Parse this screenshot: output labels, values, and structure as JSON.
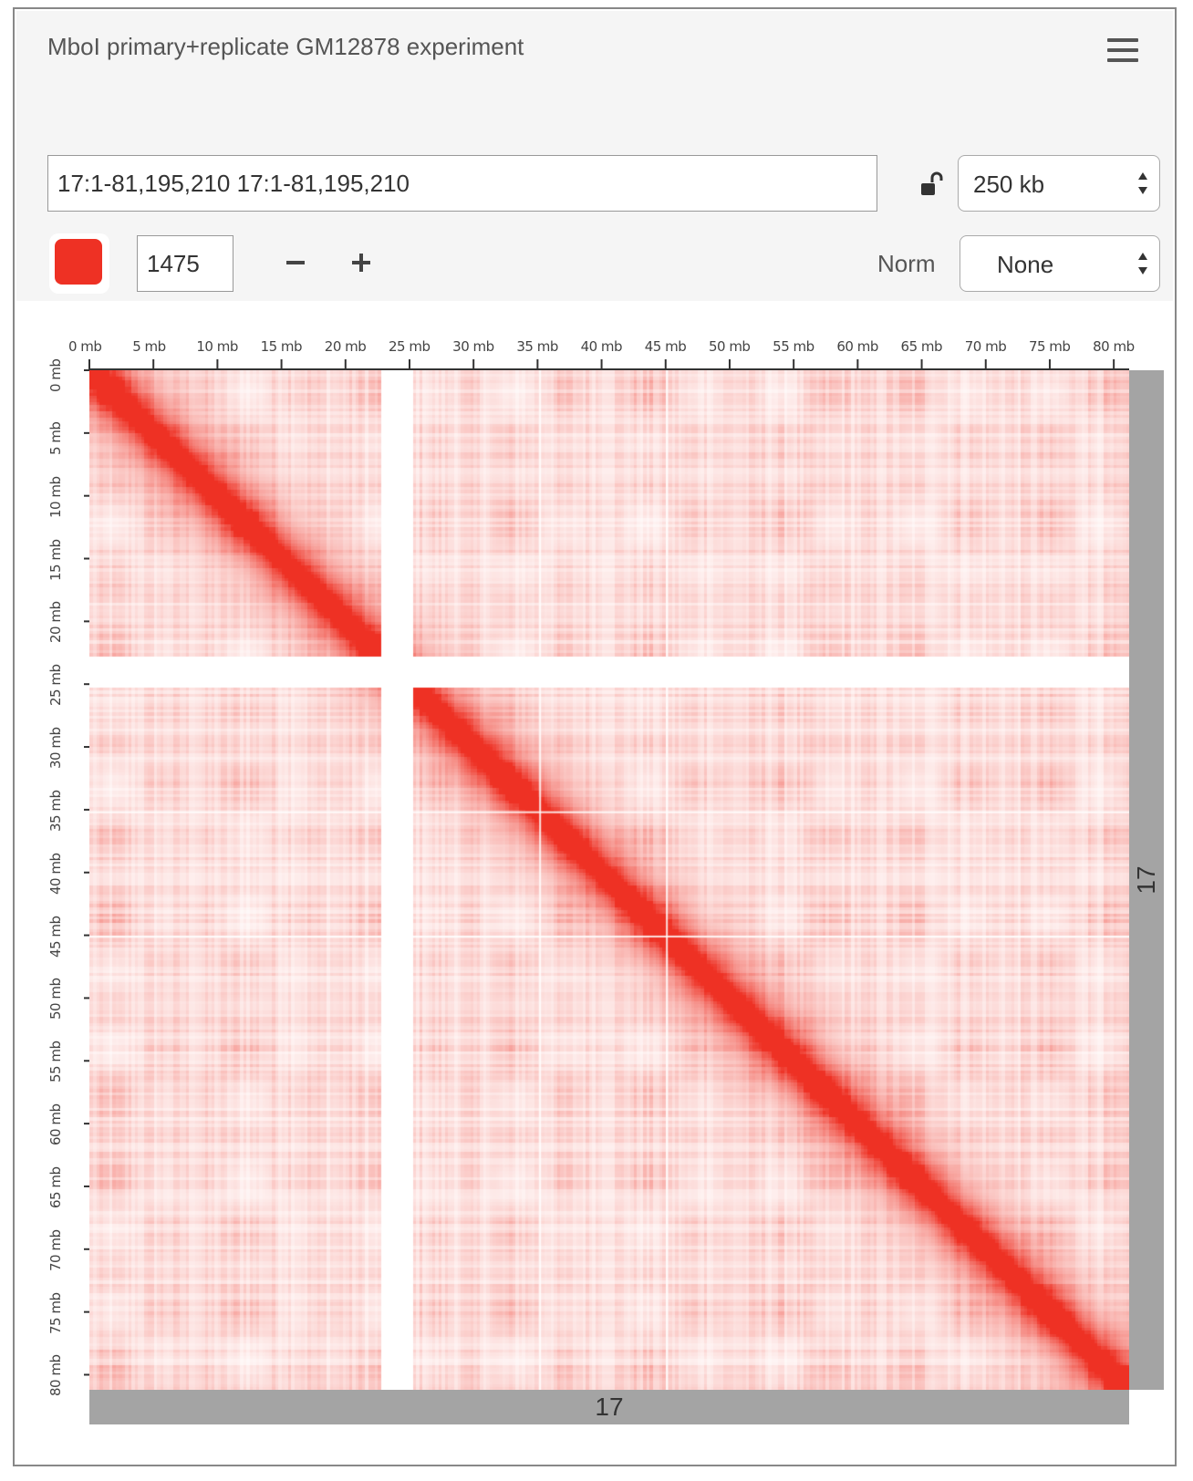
{
  "header": {
    "title": "MboI primary+replicate GM12878 experiment",
    "menu_icon": "hamburger-menu-icon"
  },
  "locus": {
    "value": "17:1-81,195,210 17:1-81,195,210",
    "lock_icon": "unlock-icon",
    "resolution": "250 kb"
  },
  "controls": {
    "color": "#ee3124",
    "color_max": "1475",
    "minus_icon": "minus-icon",
    "plus_icon": "plus-icon",
    "norm_label": "Norm",
    "norm_value": "None"
  },
  "ruler": {
    "ticks": [
      "0 mb",
      "5 mb",
      "10 mb",
      "15 mb",
      "20 mb",
      "25 mb",
      "30 mb",
      "35 mb",
      "40 mb",
      "45 mb",
      "50 mb",
      "55 mb",
      "60 mb",
      "65 mb",
      "70 mb",
      "75 mb",
      "80 mb"
    ]
  },
  "chromosome": {
    "x_label": "17",
    "y_label": "17"
  },
  "heatmap": {
    "chromosome_length_mb": 81.2,
    "centromere_gap_mb": [
      22.5,
      25.2
    ],
    "missing_rows_mb": [
      35.2,
      45.1
    ],
    "color": "#ee3124"
  }
}
